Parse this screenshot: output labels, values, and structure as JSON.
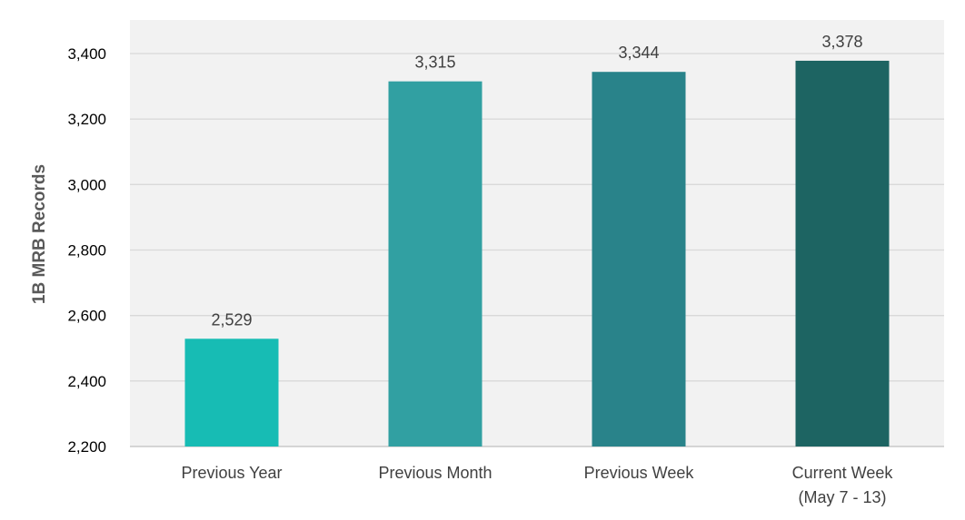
{
  "chart_data": {
    "type": "bar",
    "title": "",
    "xlabel": "",
    "ylabel": "1B MRB Records",
    "ylim": [
      2200,
      3400
    ],
    "yticks": [
      2200,
      2400,
      2600,
      2800,
      3000,
      3200,
      3400
    ],
    "ytick_labels": [
      "2,200",
      "2,400",
      "2,600",
      "2,800",
      "3,000",
      "3,200",
      "3,400"
    ],
    "categories": [
      [
        "Previous Year"
      ],
      [
        "Previous Month"
      ],
      [
        "Previous Week"
      ],
      [
        "Current Week",
        "(May 7 - 13)"
      ]
    ],
    "values": [
      2529,
      3315,
      3344,
      3378
    ],
    "data_labels": [
      "2,529",
      "3,315",
      "3,344",
      "3,378"
    ],
    "bar_colors": [
      "#17bcb4",
      "#31a0a2",
      "#29838a",
      "#1d6462"
    ],
    "plot_background": "#f2f2f2",
    "gridline_color": "#d9d9d9",
    "grid": true,
    "legend": "none"
  }
}
